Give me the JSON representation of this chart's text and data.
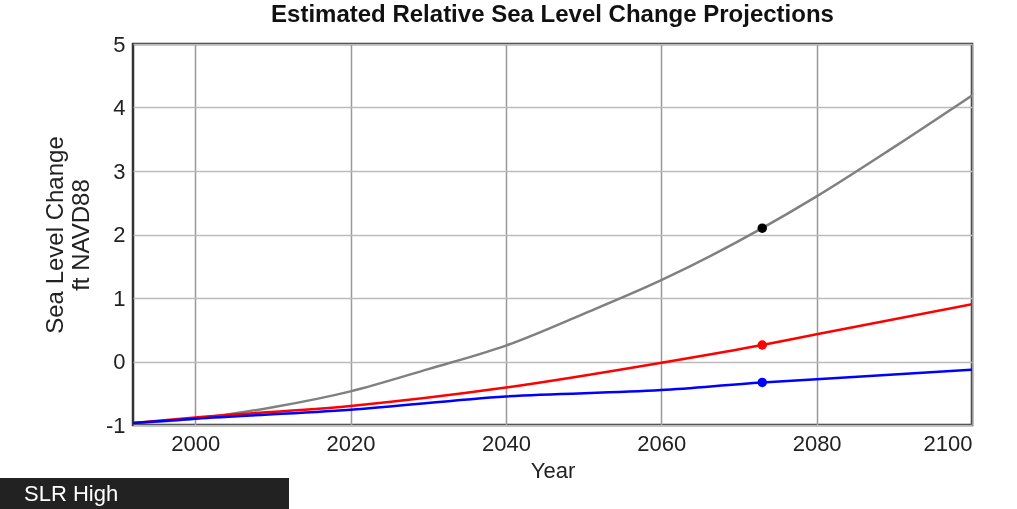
{
  "chart_data": {
    "type": "line",
    "title": "Estimated Relative Sea Level Change Projections",
    "xlabel": "Year",
    "ylabel": "Sea Level Change\nft NAVD88",
    "xlim": [
      1992,
      2100
    ],
    "xticks": [
      2000,
      2020,
      2040,
      2060,
      2080,
      2100
    ],
    "ylim": [
      -1,
      5
    ],
    "yticks": [
      -1,
      0,
      1,
      2,
      3,
      4,
      5
    ],
    "grid": true,
    "line_style": "solid",
    "series": [
      {
        "color": "#808080",
        "x": [
          1992,
          2000,
          2010,
          2020,
          2030,
          2040,
          2050,
          2060,
          2073,
          2080,
          2090,
          2100
        ],
        "values": [
          -0.97,
          -0.9,
          -0.72,
          -0.47,
          -0.12,
          0.25,
          0.75,
          1.28,
          2.1,
          2.6,
          3.38,
          4.19
        ]
      },
      {
        "color": "#ff0000",
        "x": [
          1992,
          2000,
          2020,
          2040,
          2060,
          2073,
          2080,
          2100
        ],
        "values": [
          -0.97,
          -0.88,
          -0.7,
          -0.41,
          -0.02,
          0.26,
          0.43,
          0.9
        ]
      },
      {
        "color": "#0000ff",
        "x": [
          1992,
          2000,
          2020,
          2040,
          2060,
          2073,
          2080,
          2100
        ],
        "values": [
          -0.97,
          -0.9,
          -0.76,
          -0.55,
          -0.45,
          -0.33,
          -0.28,
          -0.13
        ]
      },
      {
        "type": "scatter",
        "marker": "circle",
        "color": "#000000",
        "x": [
          2073
        ],
        "values": [
          2.1
        ]
      },
      {
        "type": "scatter",
        "marker": "circle",
        "color": "#ff0000",
        "x": [
          2073
        ],
        "values": [
          0.26
        ]
      },
      {
        "type": "scatter",
        "marker": "circle",
        "color": "#0000ff",
        "x": [
          2073
        ],
        "values": [
          -0.33
        ]
      }
    ],
    "annotations": [
      "SLR High"
    ]
  }
}
